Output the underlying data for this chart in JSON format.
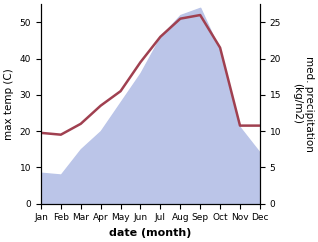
{
  "months": [
    "Jan",
    "Feb",
    "Mar",
    "Apr",
    "May",
    "Jun",
    "Jul",
    "Aug",
    "Sep",
    "Oct",
    "Nov",
    "Dec"
  ],
  "month_indices": [
    1,
    2,
    3,
    4,
    5,
    6,
    7,
    8,
    9,
    10,
    11,
    12
  ],
  "temperature": [
    19.5,
    19.0,
    22,
    27,
    31,
    39,
    46,
    51,
    52,
    43,
    21.5,
    21.5
  ],
  "precipitation": [
    8.5,
    8.0,
    15,
    20,
    28,
    36,
    46,
    52,
    54,
    42,
    21,
    14
  ],
  "temp_color": "#a04050",
  "precip_fill_color": "#bbc5e8",
  "title": "",
  "xlabel": "date (month)",
  "ylabel_left": "max temp (C)",
  "ylabel_right": "med. precipitation\n(kg/m2)",
  "ylim_left": [
    0,
    55
  ],
  "ylim_right": [
    0,
    27.5
  ],
  "yticks_left": [
    0,
    10,
    20,
    30,
    40,
    50
  ],
  "yticks_right": [
    0,
    5,
    10,
    15,
    20,
    25
  ],
  "background_color": "#ffffff",
  "line_width": 1.8,
  "label_fontsize": 7.5,
  "tick_fontsize": 6.5,
  "xlabel_fontsize": 8,
  "xlabel_fontweight": "bold"
}
